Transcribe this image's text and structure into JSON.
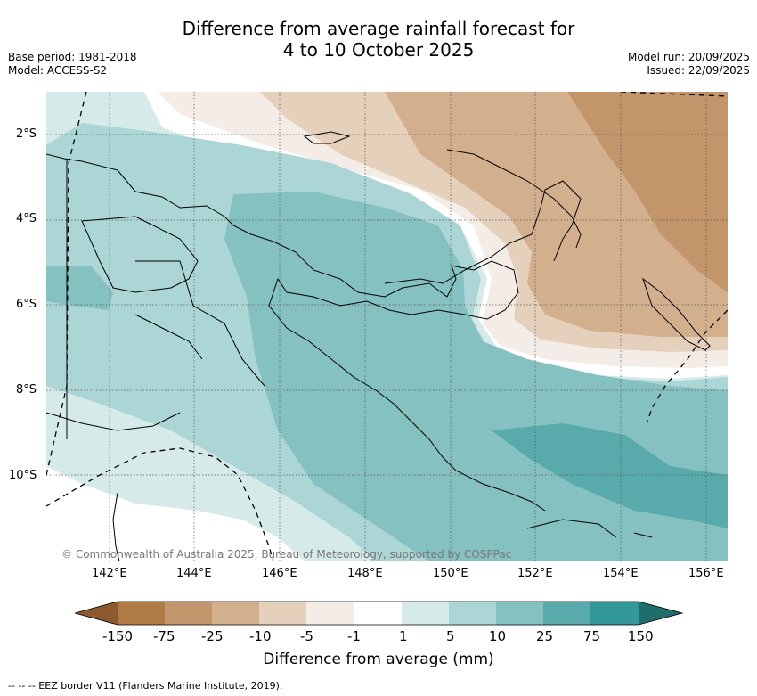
{
  "title_line1": "Difference from average rainfall forecast for",
  "title_line2": "4 to 10 October 2025",
  "base_period": "Base period: 1981-2018",
  "model": "Model: ACCESS-S2",
  "model_run": "Model run: 20/09/2025",
  "issued": "Issued: 22/09/2025",
  "copyright": "© Commonwealth of Australia 2025, Bureau of Meteorology, supported by COSPPac",
  "lat_labels": [
    "2°S",
    "4°S",
    "6°S",
    "8°S",
    "10°S"
  ],
  "lon_labels": [
    "142°E",
    "144°E",
    "146°E",
    "148°E",
    "150°E",
    "152°E",
    "154°E",
    "156°E"
  ],
  "colorbar": {
    "title": "Difference from average (mm)",
    "tick_labels": [
      "-150",
      "-75",
      "-25",
      "-10",
      "-5",
      "-1",
      "1",
      "5",
      "10",
      "25",
      "75",
      "150"
    ],
    "colors": [
      "#8c5a2e",
      "#b07a45",
      "#c2956a",
      "#d2b08e",
      "#e5d0bb",
      "#f4ece6",
      "#ffffff",
      "#d6eaea",
      "#acd5d5",
      "#86c1c1",
      "#59aaaa",
      "#339898",
      "#1e6e6e"
    ]
  },
  "legend_eez": "--  --  -- EEZ border V11 (Flanders Marine Institute, 2019)."
}
